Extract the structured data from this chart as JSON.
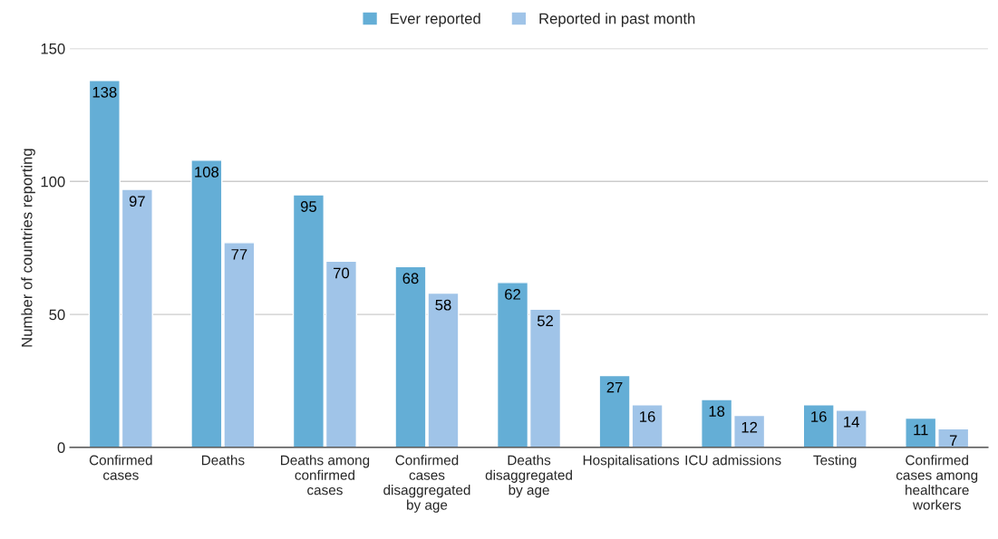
{
  "chart_data": {
    "type": "bar",
    "ylabel": "Number of countries reporting",
    "categories": [
      "Confirmed\ncases",
      "Deaths",
      "Deaths among\nconfirmed\ncases",
      "Confirmed\ncases\ndisaggregated\nby age",
      "Deaths\ndisaggregated\nby age",
      "Hospitalisations",
      "ICU admissions",
      "Testing",
      "Confirmed\ncases among\nhealthcare\nworkers"
    ],
    "series": [
      {
        "name": "Ever reported",
        "color": "#64aed6",
        "values": [
          138,
          108,
          95,
          68,
          62,
          27,
          18,
          16,
          11
        ]
      },
      {
        "name": "Reported in past month",
        "color": "#a0c4e8",
        "values": [
          97,
          77,
          70,
          58,
          52,
          16,
          12,
          14,
          7
        ]
      }
    ],
    "ylim": [
      0,
      150
    ],
    "yticks": [
      0,
      50,
      100,
      150
    ],
    "grid": "y",
    "legend": "top",
    "data_labels": true
  }
}
